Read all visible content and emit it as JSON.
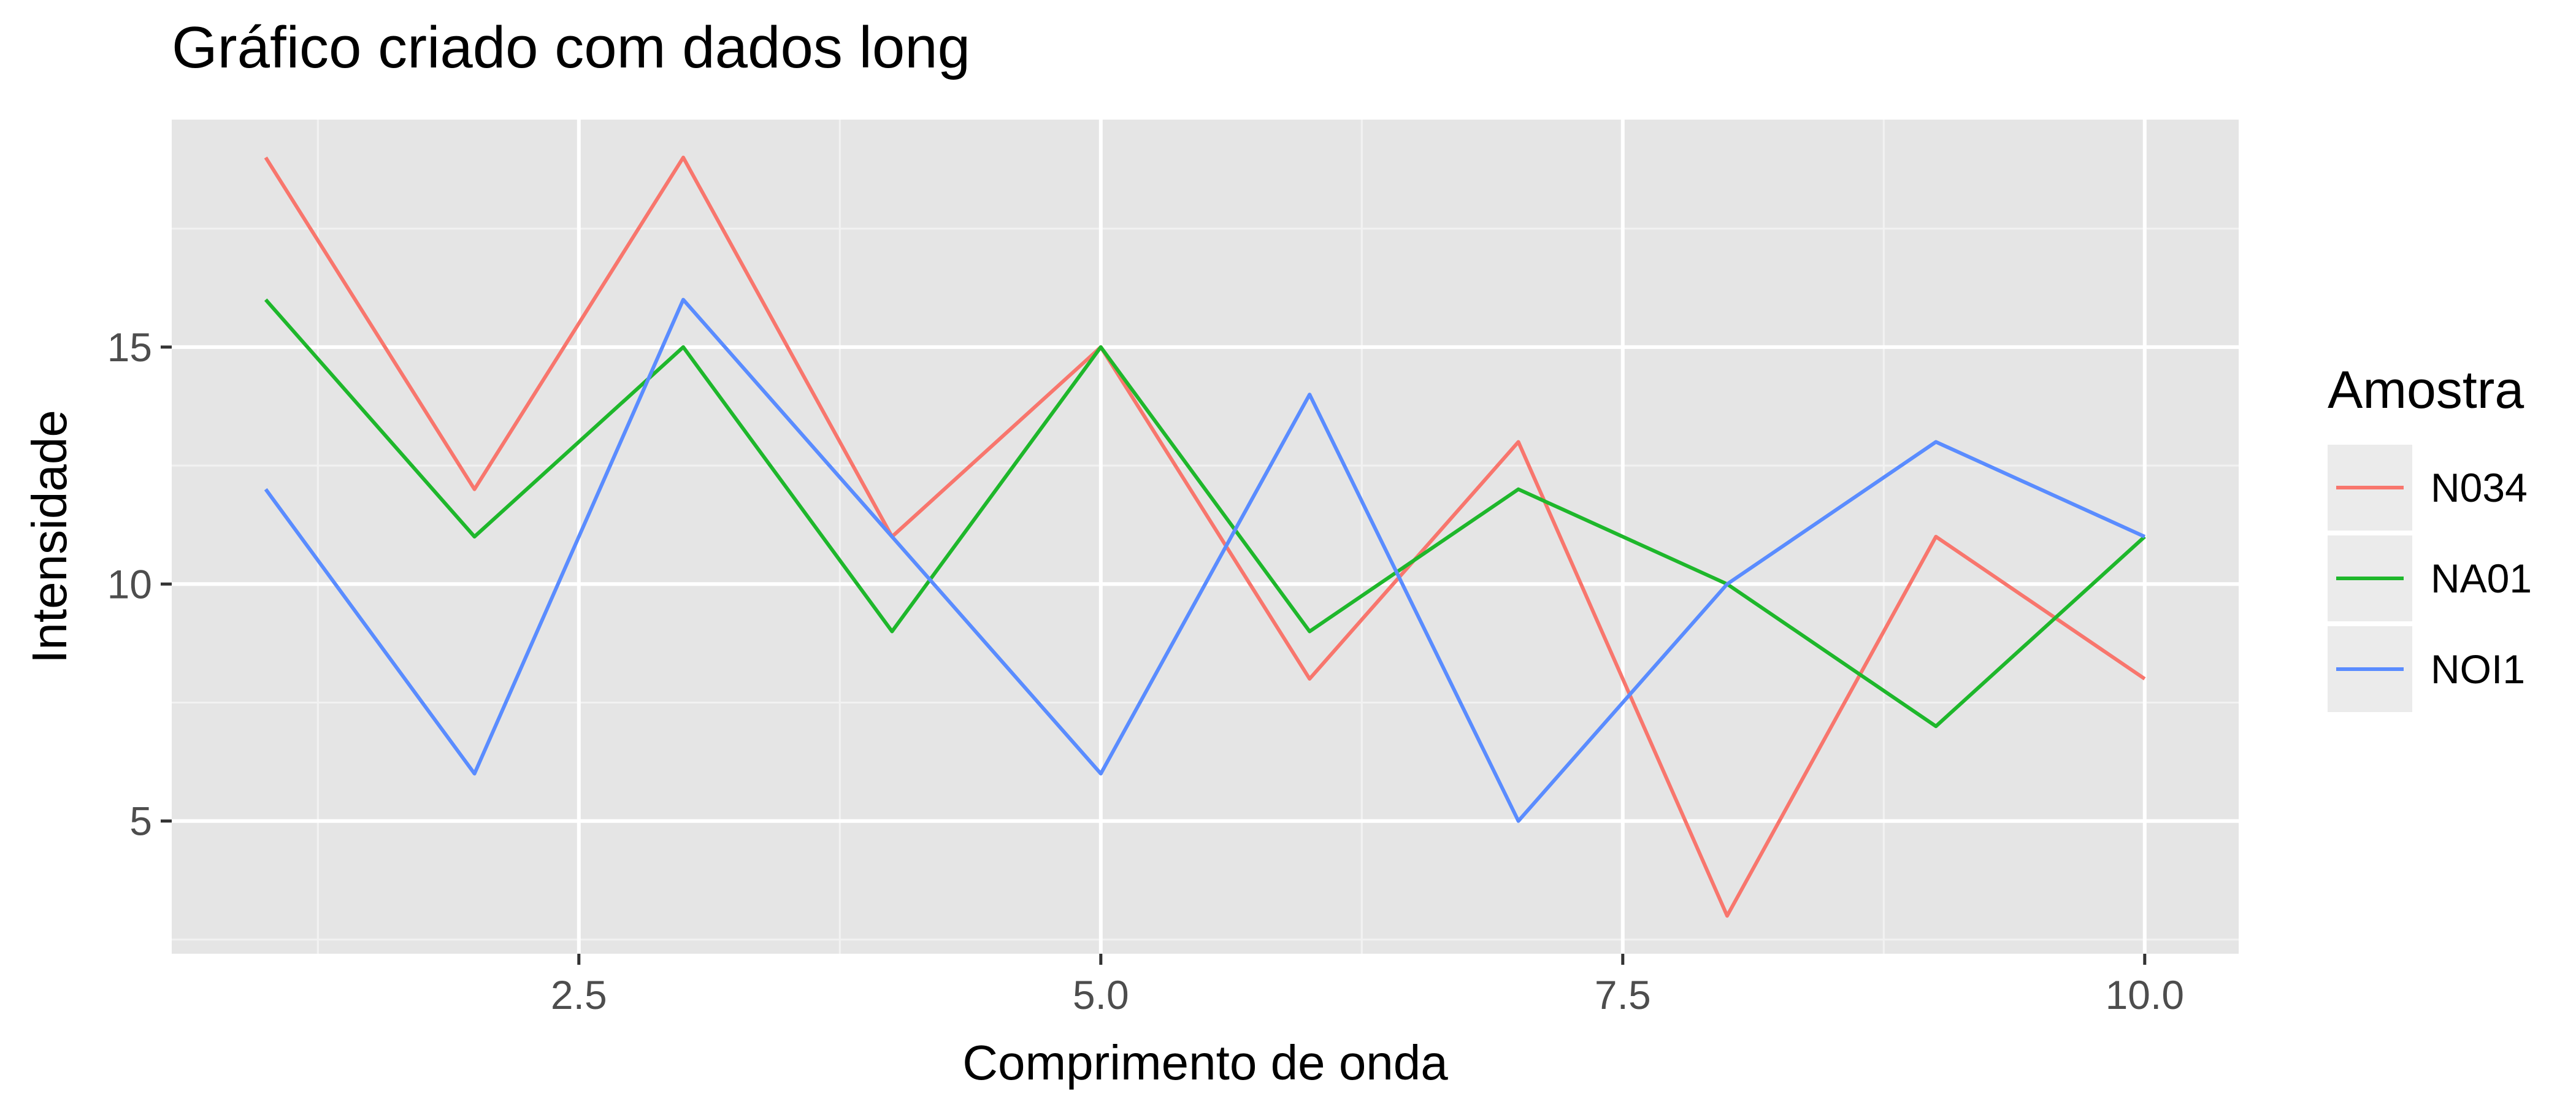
{
  "chart_data": {
    "type": "line",
    "title": "Gráfico criado com dados long",
    "xlabel": "Comprimento de onda",
    "ylabel": "Intensidade",
    "x": [
      1,
      2,
      3,
      4,
      5,
      6,
      7,
      8,
      9,
      10
    ],
    "xlim": [
      0.55,
      10.45
    ],
    "ylim": [
      2.2,
      19.8
    ],
    "x_ticks": [
      2.5,
      5.0,
      7.5,
      10.0
    ],
    "x_tick_labels": [
      "2.5",
      "5.0",
      "7.5",
      "10.0"
    ],
    "x_minor_ticks": [
      1.25,
      3.75,
      6.25,
      8.75
    ],
    "y_ticks": [
      5,
      10,
      15
    ],
    "y_tick_labels": [
      "5",
      "10",
      "15"
    ],
    "y_minor_ticks": [
      2.5,
      7.5,
      12.5,
      17.5
    ],
    "grid": true,
    "panel_background": "#e5e5e5",
    "legend": {
      "title": "Amostra",
      "position": "right"
    },
    "series": [
      {
        "name": "N034",
        "color": "#f8766d",
        "values": [
          19,
          12,
          19,
          11,
          15,
          8,
          13,
          3,
          11,
          8
        ]
      },
      {
        "name": "NA01",
        "color": "#1eb72b",
        "values": [
          16,
          11,
          15,
          9,
          15,
          9,
          12,
          10,
          7,
          11
        ]
      },
      {
        "name": "NOI1",
        "color": "#5a8cff",
        "values": [
          12,
          6,
          16,
          11,
          6,
          14,
          5,
          10,
          13,
          11
        ]
      }
    ]
  }
}
